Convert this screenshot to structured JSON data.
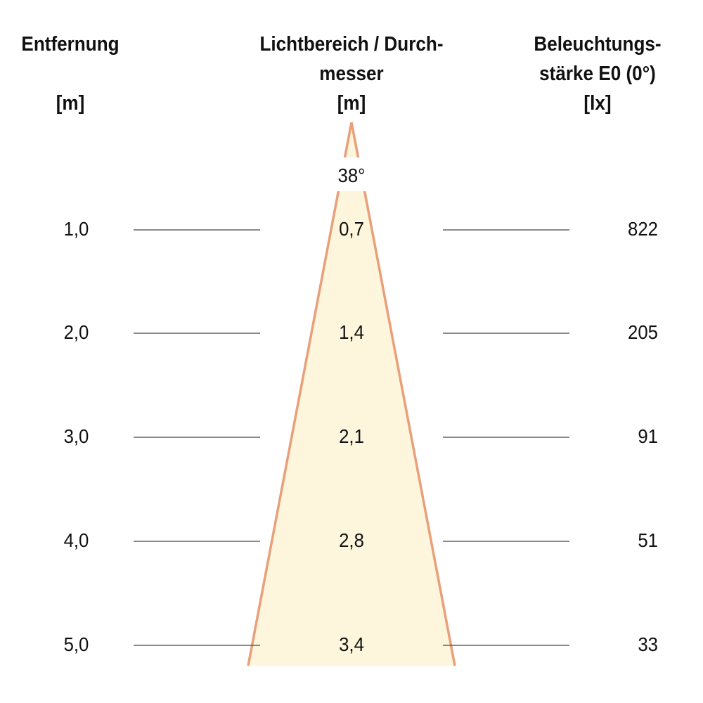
{
  "headers": {
    "distance": {
      "line1": "Entfernung",
      "unit": "[m]"
    },
    "diameter": {
      "line1": "Lichtbereich / Durch-",
      "line2": "messer",
      "unit": "[m]"
    },
    "illuminance": {
      "line1": "Beleuchtungs-",
      "line2": "stärke E0 (0°)",
      "unit": "[lx]"
    }
  },
  "beam_angle": "38°",
  "rows": [
    {
      "distance": "1,0",
      "diameter": "0,7",
      "lux": "822"
    },
    {
      "distance": "2,0",
      "diameter": "1,4",
      "lux": "205"
    },
    {
      "distance": "3,0",
      "diameter": "2,1",
      "lux": "91"
    },
    {
      "distance": "4,0",
      "diameter": "2,8",
      "lux": "51"
    },
    {
      "distance": "5,0",
      "diameter": "3,4",
      "lux": "33"
    }
  ],
  "colors": {
    "cone_fill": "#fdf6dc",
    "cone_edge": "#e9a07a",
    "line": "#444444"
  }
}
